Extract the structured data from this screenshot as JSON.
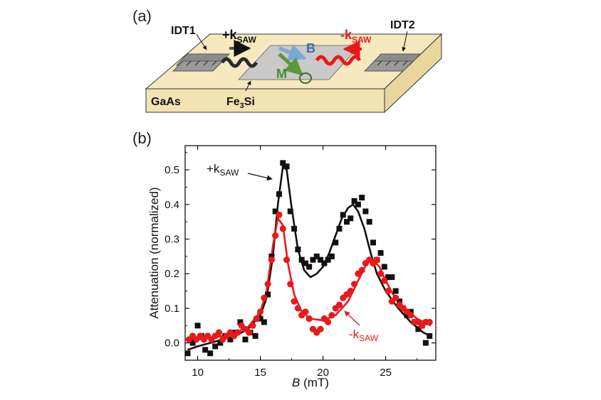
{
  "panel_a": {
    "letter": "(a)",
    "idt1": "IDT1",
    "idt2": "IDT2",
    "k_plus_prefix": "+k",
    "k_plus_sub": "SAW",
    "k_minus_prefix": "-k",
    "k_minus_sub": "SAW",
    "field_b": "B",
    "magnetization": "M",
    "substrate": "GaAs",
    "film_main": "Fe",
    "film_sub": "3",
    "film_tail": "Si",
    "colors": {
      "substrate": "#f7e9bf",
      "film": "#c8c8c8",
      "plus": "#222222",
      "minus": "#e8191b",
      "b_arrow": "#7ea6d8",
      "m_arrow": "#5a9a3c"
    }
  },
  "panel_b": {
    "letter": "(b)",
    "curve_label_plus_prefix": "+k",
    "curve_label_plus_sub": "SAW",
    "curve_label_minus_prefix": "-k",
    "curve_label_minus_sub": "SAW"
  },
  "chart_data": {
    "type": "scatter",
    "xlabel_italic": "B",
    "xlabel_rest": " (mT)",
    "ylabel": "Attenuation (normalized)",
    "xlim": [
      9,
      29
    ],
    "ylim": [
      -0.05,
      0.57
    ],
    "xticks": [
      10,
      15,
      20,
      25
    ],
    "yticks": [
      0.0,
      0.1,
      0.2,
      0.3,
      0.4,
      0.5
    ],
    "ytick_labels": [
      "0.0",
      "0.1",
      "0.2",
      "0.3",
      "0.4",
      "0.5"
    ],
    "series": [
      {
        "name": "+kSAW",
        "marker": "square",
        "color": "#111111",
        "points": [
          [
            9.2,
            -0.03
          ],
          [
            9.6,
            0.0
          ],
          [
            10.0,
            0.05
          ],
          [
            10.3,
            0.02
          ],
          [
            10.6,
            -0.02
          ],
          [
            11.0,
            -0.03
          ],
          [
            11.4,
            -0.01
          ],
          [
            11.8,
            0.0
          ],
          [
            12.2,
            0.02
          ],
          [
            12.6,
            0.01
          ],
          [
            13.0,
            0.03
          ],
          [
            13.4,
            0.06
          ],
          [
            13.8,
            0.01
          ],
          [
            14.2,
            0.03
          ],
          [
            14.6,
            0.02
          ],
          [
            15.0,
            0.07
          ],
          [
            15.3,
            0.06
          ],
          [
            15.6,
            0.14
          ],
          [
            15.9,
            0.25
          ],
          [
            16.2,
            0.38
          ],
          [
            16.5,
            0.43
          ],
          [
            16.8,
            0.52
          ],
          [
            17.1,
            0.51
          ],
          [
            17.4,
            0.38
          ],
          [
            17.7,
            0.33
          ],
          [
            18.0,
            0.27
          ],
          [
            18.3,
            0.24
          ],
          [
            18.6,
            0.23
          ],
          [
            18.9,
            0.22
          ],
          [
            19.2,
            0.24
          ],
          [
            19.5,
            0.25
          ],
          [
            19.8,
            0.24
          ],
          [
            20.1,
            0.23
          ],
          [
            20.4,
            0.24
          ],
          [
            20.7,
            0.25
          ],
          [
            21.0,
            0.29
          ],
          [
            21.3,
            0.33
          ],
          [
            21.6,
            0.37
          ],
          [
            21.9,
            0.35
          ],
          [
            22.2,
            0.36
          ],
          [
            22.5,
            0.41
          ],
          [
            22.8,
            0.4
          ],
          [
            23.1,
            0.42
          ],
          [
            23.4,
            0.38
          ],
          [
            23.7,
            0.35
          ],
          [
            24.0,
            0.29
          ],
          [
            24.3,
            0.24
          ],
          [
            24.6,
            0.26
          ],
          [
            24.9,
            0.22
          ],
          [
            25.2,
            0.19
          ],
          [
            25.5,
            0.19
          ],
          [
            25.8,
            0.15
          ],
          [
            26.1,
            0.12
          ],
          [
            26.4,
            0.1
          ],
          [
            26.7,
            0.08
          ],
          [
            27.0,
            0.09
          ],
          [
            27.3,
            0.06
          ],
          [
            27.6,
            0.04
          ],
          [
            27.9,
            0.05
          ],
          [
            28.2,
            0.0
          ],
          [
            28.5,
            0.02
          ]
        ]
      },
      {
        "name": "-kSAW",
        "marker": "circle",
        "color": "#e8191b",
        "points": [
          [
            9.3,
            0.01
          ],
          [
            9.6,
            0.02
          ],
          [
            9.9,
            0.01
          ],
          [
            10.2,
            0.02
          ],
          [
            10.5,
            0.01
          ],
          [
            10.8,
            0.02
          ],
          [
            11.1,
            0.01
          ],
          [
            11.4,
            0.02
          ],
          [
            11.7,
            0.03
          ],
          [
            12.0,
            0.01
          ],
          [
            12.3,
            0.02
          ],
          [
            12.6,
            0.03
          ],
          [
            12.9,
            0.02
          ],
          [
            13.2,
            0.03
          ],
          [
            13.5,
            0.05
          ],
          [
            13.8,
            0.04
          ],
          [
            14.1,
            0.03
          ],
          [
            14.4,
            0.05
          ],
          [
            14.7,
            0.07
          ],
          [
            15.0,
            0.09
          ],
          [
            15.3,
            0.13
          ],
          [
            15.6,
            0.17
          ],
          [
            15.9,
            0.24
          ],
          [
            16.2,
            0.31
          ],
          [
            16.5,
            0.37
          ],
          [
            16.8,
            0.33
          ],
          [
            17.1,
            0.24
          ],
          [
            17.4,
            0.17
          ],
          [
            17.7,
            0.12
          ],
          [
            18.0,
            0.1
          ],
          [
            18.3,
            0.08
          ],
          [
            18.6,
            0.09
          ],
          [
            18.9,
            0.07
          ],
          [
            19.2,
            0.04
          ],
          [
            19.5,
            0.03
          ],
          [
            19.8,
            0.04
          ],
          [
            20.1,
            0.07
          ],
          [
            20.4,
            0.06
          ],
          [
            20.7,
            0.08
          ],
          [
            21.0,
            0.1
          ],
          [
            21.3,
            0.11
          ],
          [
            21.6,
            0.13
          ],
          [
            21.9,
            0.14
          ],
          [
            22.2,
            0.15
          ],
          [
            22.5,
            0.17
          ],
          [
            22.8,
            0.2
          ],
          [
            23.1,
            0.21
          ],
          [
            23.4,
            0.23
          ],
          [
            23.7,
            0.24
          ],
          [
            24.0,
            0.23
          ],
          [
            24.3,
            0.24
          ],
          [
            24.6,
            0.2
          ],
          [
            24.9,
            0.18
          ],
          [
            25.2,
            0.15
          ],
          [
            25.5,
            0.12
          ],
          [
            25.8,
            0.13
          ],
          [
            26.1,
            0.11
          ],
          [
            26.4,
            0.1
          ],
          [
            26.7,
            0.09
          ],
          [
            27.0,
            0.08
          ],
          [
            27.3,
            0.06
          ],
          [
            27.6,
            0.06
          ],
          [
            27.9,
            0.05
          ],
          [
            28.2,
            0.06
          ],
          [
            28.5,
            0.06
          ]
        ]
      }
    ],
    "fits": [
      {
        "series": "+kSAW",
        "color": "#111111",
        "points": [
          [
            9.2,
            -0.02
          ],
          [
            10,
            -0.01
          ],
          [
            11,
            0.0
          ],
          [
            12,
            0.01
          ],
          [
            13,
            0.02
          ],
          [
            14,
            0.04
          ],
          [
            15,
            0.08
          ],
          [
            15.5,
            0.13
          ],
          [
            16,
            0.25
          ],
          [
            16.4,
            0.4
          ],
          [
            16.8,
            0.51
          ],
          [
            17.1,
            0.5
          ],
          [
            17.5,
            0.39
          ],
          [
            18,
            0.27
          ],
          [
            18.5,
            0.21
          ],
          [
            19,
            0.19
          ],
          [
            19.5,
            0.2
          ],
          [
            20,
            0.22
          ],
          [
            20.5,
            0.26
          ],
          [
            21,
            0.31
          ],
          [
            21.5,
            0.36
          ],
          [
            22,
            0.39
          ],
          [
            22.4,
            0.4
          ],
          [
            22.8,
            0.38
          ],
          [
            23.3,
            0.33
          ],
          [
            23.8,
            0.26
          ],
          [
            24.3,
            0.2
          ],
          [
            25,
            0.15
          ],
          [
            26,
            0.1
          ],
          [
            27,
            0.06
          ],
          [
            28,
            0.03
          ],
          [
            28.6,
            0.02
          ]
        ]
      },
      {
        "series": "-kSAW",
        "color": "#e8191b",
        "points": [
          [
            9.2,
            0.01
          ],
          [
            10,
            0.01
          ],
          [
            11,
            0.015
          ],
          [
            12,
            0.02
          ],
          [
            13,
            0.03
          ],
          [
            14,
            0.045
          ],
          [
            15,
            0.09
          ],
          [
            15.5,
            0.15
          ],
          [
            16,
            0.28
          ],
          [
            16.4,
            0.36
          ],
          [
            16.8,
            0.34
          ],
          [
            17.2,
            0.23
          ],
          [
            17.7,
            0.14
          ],
          [
            18.3,
            0.09
          ],
          [
            19,
            0.07
          ],
          [
            20,
            0.065
          ],
          [
            21,
            0.08
          ],
          [
            22,
            0.12
          ],
          [
            22.8,
            0.18
          ],
          [
            23.5,
            0.23
          ],
          [
            24,
            0.24
          ],
          [
            24.5,
            0.22
          ],
          [
            25,
            0.18
          ],
          [
            25.6,
            0.14
          ],
          [
            26.5,
            0.1
          ],
          [
            27.5,
            0.07
          ],
          [
            28.6,
            0.05
          ]
        ]
      }
    ]
  }
}
